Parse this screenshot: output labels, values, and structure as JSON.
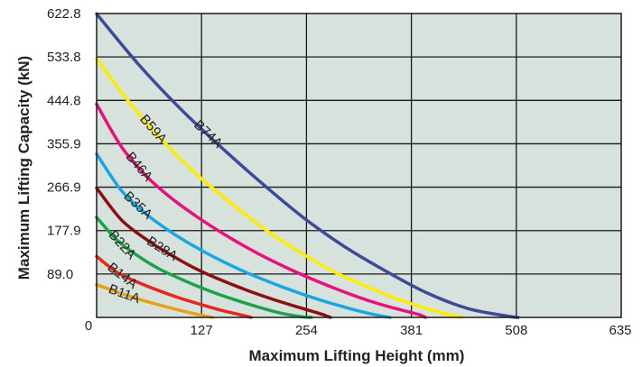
{
  "chart_data": {
    "type": "line",
    "title": "",
    "xlabel": "Maximum Lifting Height (mm)",
    "ylabel": "Maximum Lifting Capacity (kN)",
    "xlim": [
      0,
      635
    ],
    "ylim": [
      0,
      622.8
    ],
    "xticks": [
      "0",
      "127",
      "254",
      "381",
      "508",
      "635"
    ],
    "yticks": [
      "89.0",
      "177.9",
      "266.9",
      "355.9",
      "444.8",
      "533.8",
      "622.8"
    ],
    "grid": true,
    "background": "#d8e2dc",
    "legend": "none",
    "series": [
      {
        "name": "B74A",
        "color": "#3b4a9a",
        "x": [
          0,
          50,
          100,
          150,
          200,
          250,
          300,
          350,
          400,
          450,
          500,
          510
        ],
        "y": [
          622,
          520,
          430,
          350,
          275,
          205,
          145,
          95,
          50,
          18,
          2,
          0
        ]
      },
      {
        "name": "B59A",
        "color": "#ffec00",
        "x": [
          0,
          40,
          80,
          120,
          160,
          200,
          240,
          280,
          320,
          360,
          400,
          430,
          442
        ],
        "y": [
          530,
          440,
          362,
          295,
          238,
          185,
          140,
          100,
          68,
          40,
          18,
          4,
          0
        ]
      },
      {
        "name": "B46A",
        "color": "#e8117c",
        "x": [
          0,
          30,
          60,
          90,
          120,
          150,
          180,
          210,
          240,
          270,
          300,
          330,
          360,
          390,
          398
        ],
        "y": [
          437,
          350,
          290,
          245,
          208,
          175,
          145,
          118,
          94,
          72,
          52,
          34,
          19,
          6,
          0
        ]
      },
      {
        "name": "B35A",
        "color": "#1aa6e3",
        "x": [
          0,
          30,
          60,
          90,
          120,
          150,
          180,
          210,
          240,
          270,
          300,
          330,
          355
        ],
        "y": [
          335,
          260,
          212,
          175,
          144,
          117,
          93,
          72,
          53,
          36,
          21,
          8,
          0
        ]
      },
      {
        "name": "B28A",
        "color": "#8b1010",
        "x": [
          0,
          30,
          60,
          90,
          120,
          150,
          180,
          210,
          240,
          270,
          283
        ],
        "y": [
          265,
          200,
          160,
          128,
          100,
          77,
          57,
          39,
          23,
          8,
          0
        ]
      },
      {
        "name": "B22A",
        "color": "#1ca34a",
        "x": [
          0,
          25,
          50,
          75,
          100,
          125,
          150,
          175,
          200,
          225,
          250,
          260
        ],
        "y": [
          205,
          158,
          126,
          100,
          80,
          62,
          46,
          32,
          19,
          8,
          1,
          0
        ]
      },
      {
        "name": "B14A",
        "color": "#e8261c",
        "x": [
          0,
          25,
          50,
          75,
          100,
          125,
          150,
          175,
          187
        ],
        "y": [
          125,
          92,
          72,
          55,
          40,
          27,
          15,
          5,
          0
        ]
      },
      {
        "name": "B11A",
        "color": "#e4a317",
        "x": [
          0,
          25,
          50,
          75,
          100,
          125,
          140
        ],
        "y": [
          67,
          52,
          38,
          26,
          15,
          5,
          0
        ]
      }
    ]
  }
}
